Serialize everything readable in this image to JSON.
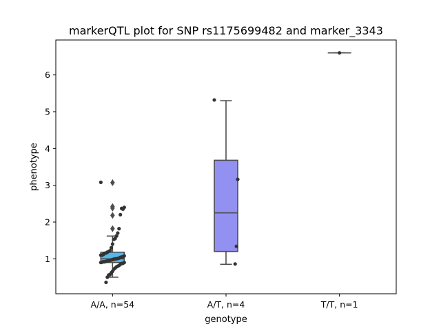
{
  "chart_data": {
    "type": "box",
    "title": "markerQTL plot for SNP rs1175699482 and marker_3343",
    "xlabel": "genotype",
    "ylabel": "phenotype",
    "ylim": [
      0.05,
      6.95
    ],
    "yticks": [
      "1",
      "2",
      "3",
      "4",
      "5",
      "6"
    ],
    "grid": false,
    "categories": [
      "A/A, n=54",
      "A/T, n=4",
      "T/T, n=1"
    ],
    "boxes": [
      {
        "category": "A/A, n=54",
        "color": "#54b8e8",
        "whisker_low": 0.5,
        "q1": 0.9,
        "median": 1.0,
        "q3": 1.18,
        "whisker_high": 1.62,
        "outliers": [
          2.18,
          2.38,
          2.42,
          1.82,
          3.07
        ]
      },
      {
        "category": "A/T, n=4",
        "color": "#9290f0",
        "whisker_low": 0.85,
        "q1": 1.2,
        "median": 2.25,
        "q3": 3.68,
        "whisker_high": 5.3,
        "outliers": []
      },
      {
        "category": "T/T, n=1",
        "color": "#7fd07f",
        "whisker_low": 6.6,
        "q1": 6.6,
        "median": 6.6,
        "q3": 6.6,
        "whisker_high": 6.6,
        "outliers": []
      }
    ],
    "points": [
      {
        "category": "A/A, n=54",
        "values": [
          3.08,
          2.4,
          2.35,
          2.37,
          2.2,
          1.82,
          1.7,
          1.62,
          1.55,
          1.53,
          1.4,
          1.3,
          1.22,
          1.2,
          1.18,
          1.16,
          1.15,
          1.12,
          1.1,
          1.1,
          1.08,
          1.06,
          1.05,
          1.04,
          1.02,
          1.01,
          1.0,
          1.0,
          0.99,
          0.98,
          0.97,
          0.96,
          0.95,
          0.94,
          0.93,
          0.92,
          0.92,
          0.91,
          0.9,
          0.9,
          0.88,
          0.87,
          0.85,
          0.82,
          0.8,
          0.78,
          0.75,
          0.72,
          0.66,
          0.62,
          0.57,
          0.56,
          0.5,
          0.36
        ]
      },
      {
        "category": "A/T, n=4",
        "values": [
          5.32,
          3.16,
          1.34,
          0.86
        ]
      },
      {
        "category": "T/T, n=1",
        "values": [
          6.6
        ]
      }
    ]
  }
}
